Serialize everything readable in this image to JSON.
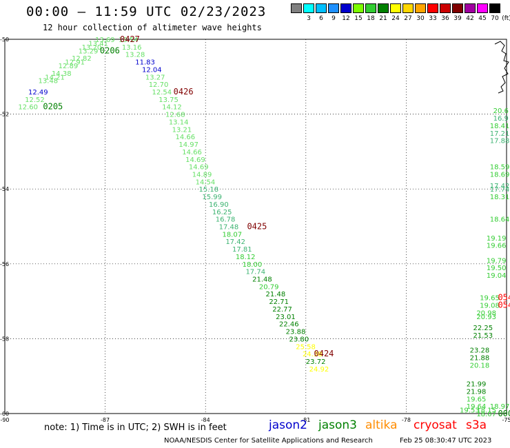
{
  "title": "00:00 – 11:59 UTC 02/23/2023",
  "subtitle": "12 hour collection of altimeter wave heights",
  "legend": {
    "unit": "(ft)",
    "levels": [
      {
        "label": "",
        "color": "#808080"
      },
      {
        "label": "3",
        "color": "#00ffff"
      },
      {
        "label": "6",
        "color": "#00bfff"
      },
      {
        "label": "9",
        "color": "#1e90ff"
      },
      {
        "label": "12",
        "color": "#0000cd"
      },
      {
        "label": "15",
        "color": "#7cfc00"
      },
      {
        "label": "18",
        "color": "#32cd32"
      },
      {
        "label": "21",
        "color": "#008000"
      },
      {
        "label": "24",
        "color": "#ffff00"
      },
      {
        "label": "27",
        "color": "#ffd700"
      },
      {
        "label": "30",
        "color": "#ffa500"
      },
      {
        "label": "33",
        "color": "#ff0000"
      },
      {
        "label": "36",
        "color": "#cc0000"
      },
      {
        "label": "39",
        "color": "#800000"
      },
      {
        "label": "42",
        "color": "#a000a0"
      },
      {
        "label": "45",
        "color": "#ff00ff"
      },
      {
        "label": "70",
        "color": "#000000"
      }
    ]
  },
  "axes": {
    "x_ticks": [
      "-90",
      "-87",
      "-84",
      "-81",
      "-78",
      "-75"
    ],
    "y_ticks": [
      "-50",
      "-52",
      "-54",
      "-56",
      "-58",
      "-60"
    ]
  },
  "time_labels": [
    {
      "text": "0427",
      "lon": -86.6,
      "lat": -50.0,
      "color": "#800000"
    },
    {
      "text": "0206",
      "lon": -87.2,
      "lat": -50.3,
      "color": "#008000"
    },
    {
      "text": "0426",
      "lon": -85.0,
      "lat": -51.4,
      "color": "#800000"
    },
    {
      "text": "0205",
      "lon": -88.9,
      "lat": -51.8,
      "color": "#008000"
    },
    {
      "text": "0425",
      "lon": -82.8,
      "lat": -55.0,
      "color": "#800000"
    },
    {
      "text": "0424",
      "lon": -80.8,
      "lat": -58.4,
      "color": "#800000"
    },
    {
      "text": "054",
      "lon": -75.3,
      "lat": -56.9,
      "color": "#ff0000"
    },
    {
      "text": "054",
      "lon": -75.3,
      "lat": -57.1,
      "color": "#ff0000"
    },
    {
      "text": "000",
      "lon": -75.3,
      "lat": -60.0,
      "color": "#008000"
    }
  ],
  "tracks": [
    {
      "name": "jason3",
      "points": [
        {
          "v": "12.60",
          "lon": -89.6,
          "lat": -51.8
        },
        {
          "v": "12.52",
          "lon": -89.4,
          "lat": -51.6
        },
        {
          "v": "12.49",
          "lon": -89.3,
          "lat": -51.4
        },
        {
          "v": "13.48",
          "lon": -89.0,
          "lat": -51.1
        },
        {
          "v": "14.21",
          "lon": -88.8,
          "lat": -51.0
        },
        {
          "v": "14.38",
          "lon": -88.6,
          "lat": -50.9
        },
        {
          "v": "12.89",
          "lon": -88.4,
          "lat": -50.7
        },
        {
          "v": "12.91",
          "lon": -88.2,
          "lat": -50.6
        },
        {
          "v": "12.82",
          "lon": -88.0,
          "lat": -50.5
        },
        {
          "v": "13.29",
          "lon": -87.8,
          "lat": -50.3
        },
        {
          "v": "13.20",
          "lon": -87.7,
          "lat": -50.2
        },
        {
          "v": "13.41",
          "lon": -87.5,
          "lat": -50.1
        },
        {
          "v": "13.69",
          "lon": -87.3,
          "lat": -50.0
        }
      ]
    },
    {
      "name": "altika",
      "points": [
        {
          "v": "13.54",
          "lon": -86.6,
          "lat": -50.0
        },
        {
          "v": "13.16",
          "lon": -86.5,
          "lat": -50.2
        },
        {
          "v": "13.28",
          "lon": -86.4,
          "lat": -50.4
        },
        {
          "v": "11.83",
          "lon": -86.1,
          "lat": -50.6
        },
        {
          "v": "12.04",
          "lon": -85.9,
          "lat": -50.8
        },
        {
          "v": "13.27",
          "lon": -85.8,
          "lat": -51.0
        },
        {
          "v": "12.70",
          "lon": -85.7,
          "lat": -51.2
        },
        {
          "v": "12.54",
          "lon": -85.6,
          "lat": -51.4
        },
        {
          "v": "13.75",
          "lon": -85.4,
          "lat": -51.6
        },
        {
          "v": "14.12",
          "lon": -85.3,
          "lat": -51.8
        },
        {
          "v": "12.68",
          "lon": -85.2,
          "lat": -52.0
        },
        {
          "v": "13.14",
          "lon": -85.1,
          "lat": -52.2
        },
        {
          "v": "13.21",
          "lon": -85.0,
          "lat": -52.4
        },
        {
          "v": "14.66",
          "lon": -84.9,
          "lat": -52.6
        },
        {
          "v": "14.97",
          "lon": -84.8,
          "lat": -52.8
        },
        {
          "v": "14.66",
          "lon": -84.7,
          "lat": -53.0
        },
        {
          "v": "14.69",
          "lon": -84.6,
          "lat": -53.2
        },
        {
          "v": "14.69",
          "lon": -84.5,
          "lat": -53.4
        },
        {
          "v": "14.89",
          "lon": -84.4,
          "lat": -53.6
        },
        {
          "v": "14.54",
          "lon": -84.3,
          "lat": -53.8
        },
        {
          "v": "15.18",
          "lon": -84.2,
          "lat": -54.0
        },
        {
          "v": "15.99",
          "lon": -84.1,
          "lat": -54.2
        },
        {
          "v": "16.90",
          "lon": -83.9,
          "lat": -54.4
        },
        {
          "v": "16.25",
          "lon": -83.8,
          "lat": -54.6
        },
        {
          "v": "16.78",
          "lon": -83.7,
          "lat": -54.8
        },
        {
          "v": "17.48",
          "lon": -83.6,
          "lat": -55.0
        },
        {
          "v": "18.07",
          "lon": -83.5,
          "lat": -55.2
        },
        {
          "v": "17.42",
          "lon": -83.4,
          "lat": -55.4
        },
        {
          "v": "17.81",
          "lon": -83.2,
          "lat": -55.6
        },
        {
          "v": "18.12",
          "lon": -83.1,
          "lat": -55.8
        },
        {
          "v": "18.00",
          "lon": -82.9,
          "lat": -56.0
        },
        {
          "v": "17.74",
          "lon": -82.8,
          "lat": -56.2
        },
        {
          "v": "21.48",
          "lon": -82.6,
          "lat": -56.4
        },
        {
          "v": "20.79",
          "lon": -82.4,
          "lat": -56.6
        },
        {
          "v": "21.48",
          "lon": -82.2,
          "lat": -56.8
        },
        {
          "v": "22.71",
          "lon": -82.1,
          "lat": -57.0
        },
        {
          "v": "22.77",
          "lon": -82.0,
          "lat": -57.2
        },
        {
          "v": "23.01",
          "lon": -81.9,
          "lat": -57.4
        },
        {
          "v": "22.46",
          "lon": -81.8,
          "lat": -57.6
        },
        {
          "v": "23.88",
          "lon": -81.6,
          "lat": -57.8
        },
        {
          "v": "23.80",
          "lon": -81.5,
          "lat": -58.0
        },
        {
          "v": "25.58",
          "lon": -81.3,
          "lat": -58.2
        },
        {
          "v": "24.38",
          "lon": -81.1,
          "lat": -58.4
        },
        {
          "v": "23.72",
          "lon": -81.0,
          "lat": -58.6
        },
        {
          "v": "24.92",
          "lon": -80.9,
          "lat": -58.8
        }
      ]
    },
    {
      "name": "jason3-east",
      "points": [
        {
          "v": "20.6",
          "lon": -75.4,
          "lat": -51.9
        },
        {
          "v": "16.9",
          "lon": -75.4,
          "lat": -52.1
        },
        {
          "v": "18.41",
          "lon": -75.5,
          "lat": -52.3
        },
        {
          "v": "17.21",
          "lon": -75.5,
          "lat": -52.5
        },
        {
          "v": "17.88",
          "lon": -75.5,
          "lat": -52.7
        },
        {
          "v": "18.59",
          "lon": -75.5,
          "lat": -53.4
        },
        {
          "v": "18.69",
          "lon": -75.5,
          "lat": -53.6
        },
        {
          "v": "17.42",
          "lon": -75.5,
          "lat": -53.9
        },
        {
          "v": "17.74",
          "lon": -75.5,
          "lat": -54.0
        },
        {
          "v": "18.31",
          "lon": -75.5,
          "lat": -54.2
        },
        {
          "v": "18.64",
          "lon": -75.5,
          "lat": -54.8
        },
        {
          "v": "19.19",
          "lon": -75.6,
          "lat": -55.3
        },
        {
          "v": "19.66",
          "lon": -75.6,
          "lat": -55.5
        },
        {
          "v": "19.79",
          "lon": -75.6,
          "lat": -55.9
        },
        {
          "v": "19.50",
          "lon": -75.6,
          "lat": -56.1
        },
        {
          "v": "19.04",
          "lon": -75.6,
          "lat": -56.3
        },
        {
          "v": "19.65",
          "lon": -75.8,
          "lat": -56.9
        },
        {
          "v": "19.08",
          "lon": -75.8,
          "lat": -57.1
        },
        {
          "v": "20.98",
          "lon": -75.9,
          "lat": -57.3
        },
        {
          "v": "20.93",
          "lon": -75.9,
          "lat": -57.4
        },
        {
          "v": "22.25",
          "lon": -76.0,
          "lat": -57.7
        },
        {
          "v": "21.53",
          "lon": -76.0,
          "lat": -57.9
        },
        {
          "v": "23.28",
          "lon": -76.1,
          "lat": -58.3
        },
        {
          "v": "21.88",
          "lon": -76.1,
          "lat": -58.5
        },
        {
          "v": "20.18",
          "lon": -76.1,
          "lat": -58.7
        },
        {
          "v": "21.99",
          "lon": -76.2,
          "lat": -59.2
        },
        {
          "v": "21.98",
          "lon": -76.2,
          "lat": -59.4
        },
        {
          "v": "19.65",
          "lon": -76.2,
          "lat": -59.6
        },
        {
          "v": "19.64",
          "lon": -76.2,
          "lat": -59.8
        },
        {
          "v": "19.53",
          "lon": -76.4,
          "lat": -59.9
        },
        {
          "v": "18.15",
          "lon": -75.9,
          "lat": -59.9
        },
        {
          "v": "18.97",
          "lon": -75.5,
          "lat": -59.8
        },
        {
          "v": "18.07",
          "lon": -75.9,
          "lat": -60.0
        }
      ]
    }
  ],
  "note": "note: 1) Time is in UTC; 2) SWH is in feet",
  "satellites": [
    {
      "name": "jason2",
      "color": "#0000cd"
    },
    {
      "name": "jason3",
      "color": "#008000"
    },
    {
      "name": "altika",
      "color": "#ff8c00"
    },
    {
      "name": "cryosat",
      "color": "#ff0000"
    },
    {
      "name": "s3a",
      "color": "#ff0000"
    }
  ],
  "credit": "NOAA/NESDIS Center for Satellite Applications and Research",
  "generated": "Feb 25 08:30:47 UTC 2023"
}
